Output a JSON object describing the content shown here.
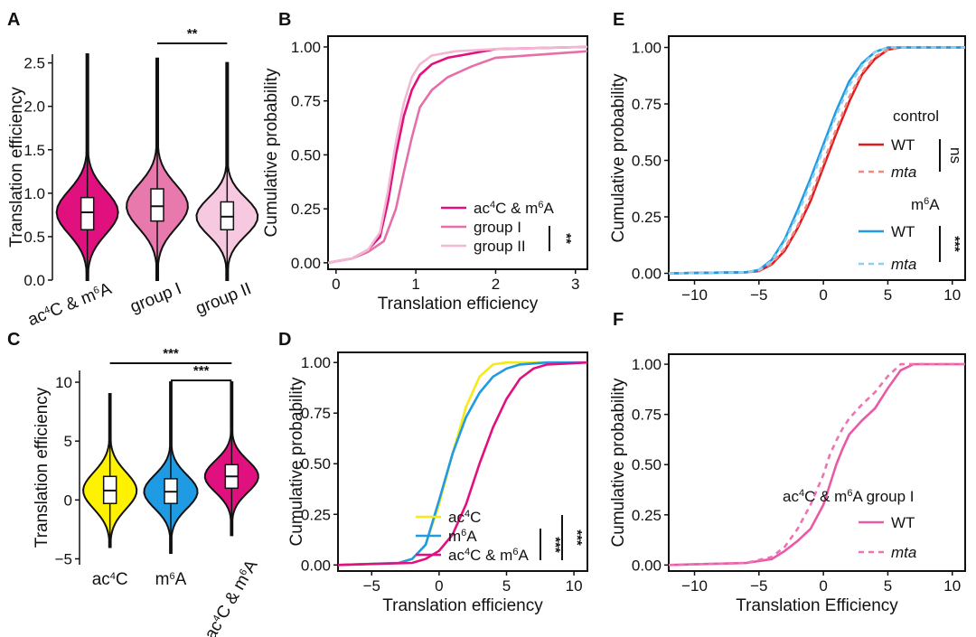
{
  "panels": {
    "A": {
      "letter": "A",
      "chart_data": {
        "type": "violin",
        "ylabel": "Translation efficiency",
        "ylim": [
          0,
          2.6
        ],
        "yticks": [
          "0.0",
          "0.5",
          "1.0",
          "1.5",
          "2.0",
          "2.5"
        ],
        "groups": [
          {
            "name": "ac4C & m6A",
            "label_html": "ac<tspan baseline-shift=\"super\" font-size=\"11\">4</tspan>C &amp; m<tspan baseline-shift=\"super\" font-size=\"11\">6</tspan>A",
            "color": "#e0117f",
            "median": 0.78,
            "q1": 0.58,
            "q3": 0.95,
            "min": 0.0,
            "max": 2.6
          },
          {
            "name": "group I",
            "label_html": "group I",
            "color": "#e779ad",
            "median": 0.85,
            "q1": 0.68,
            "q3": 1.05,
            "min": 0.0,
            "max": 2.55
          },
          {
            "name": "group II",
            "label_html": "group II",
            "color": "#f6c9e0",
            "median": 0.73,
            "q1": 0.58,
            "q3": 0.9,
            "min": 0.0,
            "max": 2.5
          }
        ],
        "significance": [
          {
            "from": "group I",
            "to": "group II",
            "label": "**"
          }
        ]
      }
    },
    "B": {
      "letter": "B",
      "chart_data": {
        "type": "line",
        "xlabel": "Translation efficiency",
        "ylabel": "Cumulative probability",
        "xlim": [
          -0.1,
          3.15
        ],
        "ylim": [
          -0.03,
          1.05
        ],
        "xticks": [
          "0",
          "1",
          "2",
          "3"
        ],
        "yticks": [
          "0.00",
          "0.25",
          "0.50",
          "0.75",
          "1.00"
        ],
        "series": [
          {
            "name": "ac4C & m6A",
            "label_html": "ac<tspan baseline-shift=\"super\" font-size=\"11\">4</tspan>C &amp; m<tspan baseline-shift=\"super\" font-size=\"11\">6</tspan>A",
            "color": "#e0117f",
            "dash": "",
            "x": [
              -0.1,
              0.2,
              0.4,
              0.55,
              0.65,
              0.75,
              0.85,
              0.95,
              1.05,
              1.2,
              1.4,
              1.7,
              2.0,
              3.15
            ],
            "y": [
              0.0,
              0.02,
              0.06,
              0.12,
              0.28,
              0.5,
              0.68,
              0.8,
              0.87,
              0.92,
              0.95,
              0.97,
              0.99,
              1.0
            ]
          },
          {
            "name": "group I",
            "label_html": "group I",
            "color": "#e56fa9",
            "dash": "",
            "x": [
              -0.1,
              0.2,
              0.4,
              0.6,
              0.75,
              0.85,
              0.95,
              1.05,
              1.2,
              1.4,
              1.7,
              2.0,
              3.15
            ],
            "y": [
              0.0,
              0.02,
              0.05,
              0.1,
              0.25,
              0.42,
              0.58,
              0.72,
              0.8,
              0.86,
              0.91,
              0.95,
              0.98
            ]
          },
          {
            "name": "group II",
            "label_html": "group II",
            "color": "#f4b7d3",
            "dash": "",
            "x": [
              -0.1,
              0.2,
              0.4,
              0.55,
              0.65,
              0.75,
              0.85,
              0.95,
              1.05,
              1.2,
              1.5,
              2.0,
              3.15
            ],
            "y": [
              0.0,
              0.02,
              0.06,
              0.14,
              0.33,
              0.56,
              0.74,
              0.86,
              0.92,
              0.96,
              0.98,
              0.99,
              1.0
            ]
          }
        ],
        "significance": [
          {
            "label": "**"
          }
        ]
      }
    },
    "C": {
      "letter": "C",
      "chart_data": {
        "type": "violin",
        "ylabel": "Translation efficiency",
        "ylim": [
          -5.5,
          11
        ],
        "yticks": [
          "−5",
          "0",
          "5",
          "10"
        ],
        "groups": [
          {
            "name": "ac4C",
            "label_html": "ac<tspan baseline-shift=\"super\" font-size=\"11\">4</tspan>C",
            "color": "#fff200",
            "median": 0.8,
            "q1": -0.3,
            "q3": 2.0,
            "min": -4.0,
            "max": 9.0
          },
          {
            "name": "m6A",
            "label_html": "m<tspan baseline-shift=\"super\" font-size=\"11\">6</tspan>A",
            "color": "#1f9be3",
            "median": 0.7,
            "q1": -0.3,
            "q3": 1.8,
            "min": -4.5,
            "max": 10.0
          },
          {
            "name": "ac4C & m6A",
            "label_html": "ac<tspan baseline-shift=\"super\" font-size=\"11\">4</tspan>C &amp; m<tspan baseline-shift=\"super\" font-size=\"11\">6</tspan>A",
            "color": "#e0117f",
            "median": 2.0,
            "q1": 1.0,
            "q3": 3.0,
            "min": -3.0,
            "max": 10.0
          }
        ],
        "significance": [
          {
            "from": "ac4C",
            "to": "ac4C & m6A",
            "label": "***"
          },
          {
            "from": "m6A",
            "to": "ac4C & m6A",
            "label": "***"
          }
        ]
      }
    },
    "D": {
      "letter": "D",
      "chart_data": {
        "type": "line",
        "xlabel": "Translation efficiency",
        "ylabel": "Cumulative probability",
        "xlim": [
          -7.5,
          11
        ],
        "ylim": [
          -0.03,
          1.05
        ],
        "xticks": [
          "−5",
          "0",
          "5",
          "10"
        ],
        "yticks": [
          "0.00",
          "0.25",
          "0.50",
          "0.75",
          "1.00"
        ],
        "series": [
          {
            "name": "ac4C",
            "label_html": "ac<tspan baseline-shift=\"super\" font-size=\"11\">4</tspan>C",
            "color": "#f4ea18",
            "dash": "",
            "x": [
              -7.5,
              -3,
              -2,
              -1,
              0,
              1,
              2,
              3,
              4,
              5,
              11
            ],
            "y": [
              0.0,
              0.01,
              0.03,
              0.1,
              0.3,
              0.55,
              0.78,
              0.93,
              0.99,
              1.0,
              1.0
            ]
          },
          {
            "name": "m6A",
            "label_html": "m<tspan baseline-shift=\"super\" font-size=\"11\">6</tspan>A",
            "color": "#1f9be3",
            "dash": "",
            "x": [
              -7.5,
              -3,
              -2,
              -1,
              0,
              1,
              2,
              3,
              4,
              5,
              6,
              8,
              11
            ],
            "y": [
              0.0,
              0.01,
              0.03,
              0.1,
              0.32,
              0.55,
              0.73,
              0.85,
              0.93,
              0.97,
              0.99,
              1.0,
              1.0
            ]
          },
          {
            "name": "ac4C & m6A",
            "label_html": "ac<tspan baseline-shift=\"super\" font-size=\"11\">4</tspan>C &amp; m<tspan baseline-shift=\"super\" font-size=\"11\">6</tspan>A",
            "color": "#e0117f",
            "dash": "",
            "x": [
              -7.5,
              -2,
              -1,
              0,
              1,
              2,
              3,
              4,
              5,
              6,
              7,
              8,
              11
            ],
            "y": [
              0.0,
              0.01,
              0.03,
              0.07,
              0.15,
              0.3,
              0.5,
              0.68,
              0.82,
              0.92,
              0.97,
              0.99,
              1.0
            ]
          }
        ],
        "significance": [
          {
            "label": "***"
          },
          {
            "label": "***"
          }
        ]
      }
    },
    "E": {
      "letter": "E",
      "chart_data": {
        "type": "line",
        "xlabel": "",
        "ylabel": "Cumulative probability",
        "xlim": [
          -12,
          11
        ],
        "ylim": [
          -0.03,
          1.05
        ],
        "xticks": [
          "−10",
          "−5",
          "0",
          "5",
          "10"
        ],
        "yticks": [
          "0.00",
          "0.25",
          "0.50",
          "0.75",
          "1.00"
        ],
        "series": [
          {
            "name": "control WT",
            "label_html": "WT",
            "color": "#e31a1c",
            "dash": "",
            "x": [
              -12,
              -6,
              -5,
              -4,
              -3,
              -2,
              -1,
              0,
              1,
              2,
              3,
              4,
              5,
              6,
              11
            ],
            "y": [
              0.0,
              0.005,
              0.01,
              0.04,
              0.1,
              0.2,
              0.32,
              0.47,
              0.62,
              0.76,
              0.88,
              0.95,
              0.99,
              1.0,
              1.0
            ]
          },
          {
            "name": "control mta",
            "label_html": "<tspan font-style=\"italic\">mta</tspan>",
            "color": "#f08a80",
            "dash": "6,5",
            "x": [
              -12,
              -6,
              -5,
              -4,
              -3,
              -2,
              -1,
              0,
              1,
              2,
              3,
              4,
              5,
              6,
              11
            ],
            "y": [
              0.0,
              0.005,
              0.012,
              0.045,
              0.11,
              0.21,
              0.34,
              0.49,
              0.64,
              0.78,
              0.89,
              0.96,
              0.99,
              1.0,
              1.0
            ]
          },
          {
            "name": "m6A WT",
            "label_html": "WT",
            "color": "#1f9be3",
            "dash": "",
            "x": [
              -12,
              -6,
              -5,
              -4,
              -3,
              -2,
              -1,
              0,
              1,
              2,
              3,
              4,
              5,
              6,
              11
            ],
            "y": [
              0.0,
              0.005,
              0.015,
              0.06,
              0.15,
              0.28,
              0.42,
              0.57,
              0.72,
              0.85,
              0.93,
              0.98,
              1.0,
              1.0,
              1.0
            ]
          },
          {
            "name": "m6A mta",
            "label_html": "<tspan font-style=\"italic\">mta</tspan>",
            "color": "#8ecfef",
            "dash": "6,5",
            "x": [
              -12,
              -6,
              -5,
              -4,
              -3,
              -2,
              -1,
              0,
              1,
              2,
              3,
              4,
              5,
              6,
              11
            ],
            "y": [
              0.0,
              0.005,
              0.014,
              0.055,
              0.14,
              0.26,
              0.4,
              0.55,
              0.7,
              0.83,
              0.92,
              0.98,
              1.0,
              1.0,
              1.0
            ]
          }
        ],
        "legend_groups": [
          {
            "title": "control",
            "items": [
              "control WT",
              "control mta"
            ],
            "sig": "ns"
          },
          {
            "title_html": "m<tspan baseline-shift=\"super\" font-size=\"11\">6</tspan>A",
            "items": [
              "m6A WT",
              "m6A mta"
            ],
            "sig": "***"
          }
        ]
      }
    },
    "F": {
      "letter": "F",
      "chart_data": {
        "type": "line",
        "xlabel": "Translation Efficiency",
        "ylabel": "Cumulative probability",
        "xlim": [
          -12,
          11
        ],
        "ylim": [
          -0.03,
          1.05
        ],
        "xticks": [
          "−10",
          "−5",
          "0",
          "5",
          "10"
        ],
        "yticks": [
          "0.00",
          "0.25",
          "0.50",
          "0.75",
          "1.00"
        ],
        "legend_title_html": "ac<tspan baseline-shift=\"super\" font-size=\"11\">4</tspan>C &amp; m<tspan baseline-shift=\"super\" font-size=\"11\">6</tspan>A group I",
        "series": [
          {
            "name": "WT",
            "label_html": "WT",
            "color": "#e85aa5",
            "dash": "",
            "x": [
              -12,
              -6,
              -4,
              -3,
              -2,
              -1,
              0,
              0.5,
              1,
              1.5,
              2,
              3,
              4,
              5,
              6,
              7,
              11
            ],
            "y": [
              0.0,
              0.01,
              0.03,
              0.07,
              0.12,
              0.18,
              0.3,
              0.4,
              0.5,
              0.58,
              0.65,
              0.72,
              0.78,
              0.88,
              0.97,
              1.0,
              1.0
            ]
          },
          {
            "name": "mta",
            "label_html": "<tspan font-style=\"italic\">mta</tspan>",
            "color": "#ec74b3",
            "dash": "6,5",
            "x": [
              -12,
              -6,
              -4,
              -3,
              -2,
              -1,
              0,
              0.5,
              1,
              1.5,
              2,
              3,
              4,
              5,
              6,
              11
            ],
            "y": [
              0.0,
              0.01,
              0.04,
              0.09,
              0.18,
              0.3,
              0.45,
              0.55,
              0.62,
              0.68,
              0.73,
              0.8,
              0.86,
              0.94,
              1.0,
              1.0
            ]
          }
        ]
      }
    }
  }
}
